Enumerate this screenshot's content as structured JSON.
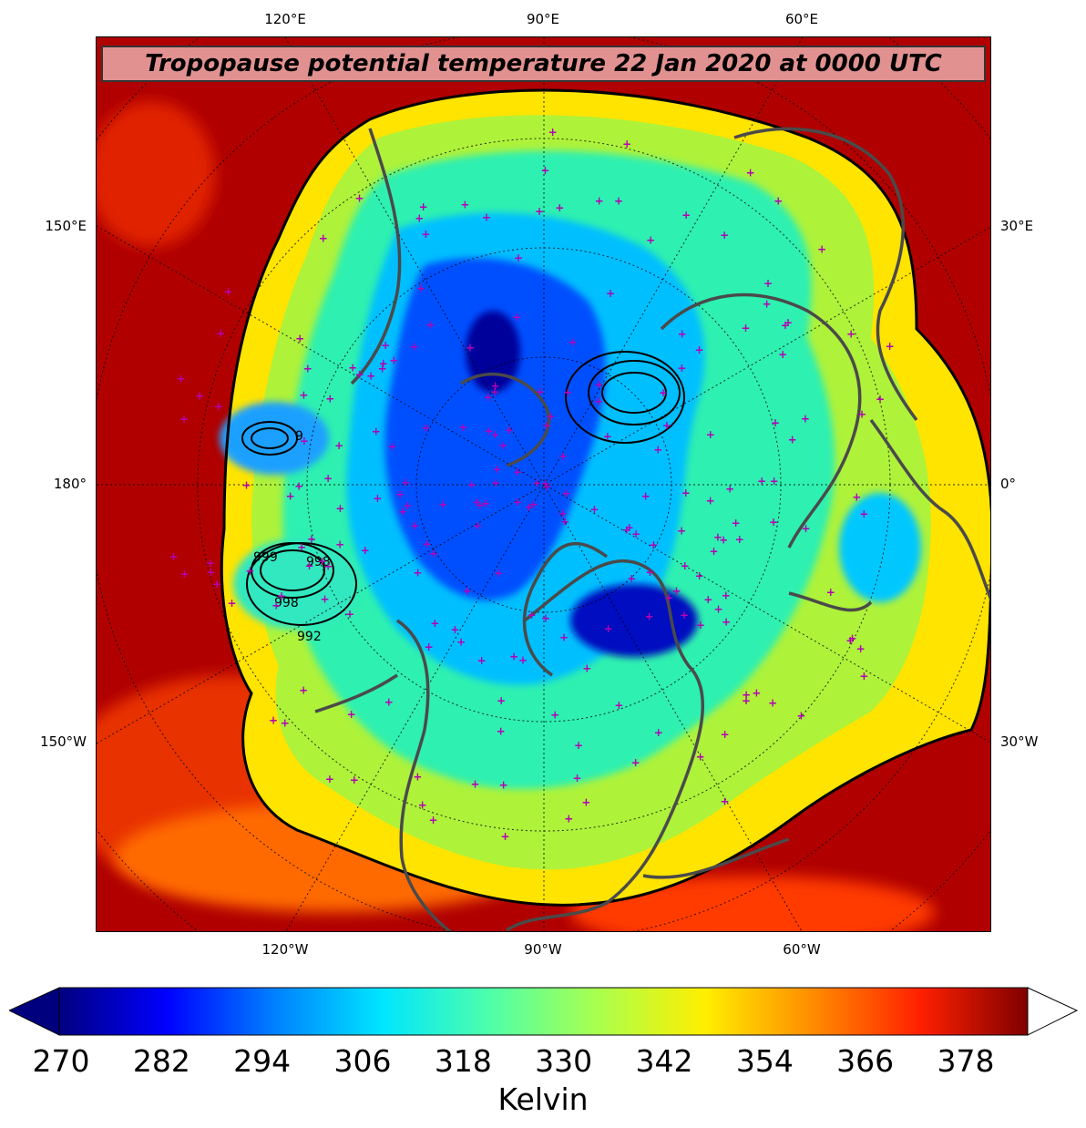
{
  "title": "Tropopause potential temperature 22 Jan 2020 at 0000 UTC",
  "longitude_labels": {
    "top": [
      "120°E",
      "90°E",
      "60°E"
    ],
    "bottom": [
      "120°W",
      "90°W",
      "60°W"
    ],
    "left": [
      "150°E",
      "180°",
      "150°W"
    ],
    "right": [
      "30°E",
      "0°",
      "30°W"
    ]
  },
  "contour_labels": [
    "999",
    "998",
    "992",
    "998",
    "9"
  ],
  "colorbar": {
    "ticks": [
      "270",
      "282",
      "294",
      "306",
      "318",
      "330",
      "342",
      "354",
      "366",
      "378"
    ],
    "label": "Kelvin",
    "colors": [
      "#00007f",
      "#0000ff",
      "#0080ff",
      "#00e5ff",
      "#4dffaa",
      "#aaff4d",
      "#ffee00",
      "#ff8c00",
      "#ff2000",
      "#800000"
    ],
    "extend": "both"
  },
  "colors": {
    "outer": "#c00000",
    "coast": "#4a4a4a",
    "stations": "#b400b4"
  }
}
